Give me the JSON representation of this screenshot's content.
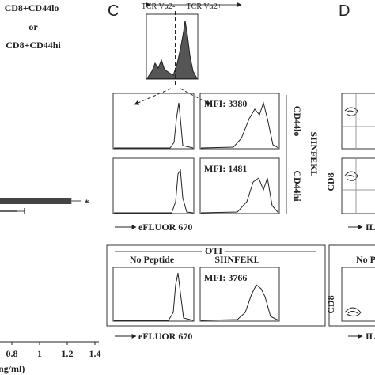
{
  "panel_b": {
    "title_lines": [
      "CD8+CD44lo",
      "or",
      "CD8+CD44hi"
    ],
    "bars": [
      {
        "value": 1.23,
        "error": 0.07,
        "label": "*"
      },
      {
        "value": 0.84,
        "error": 0.05
      }
    ],
    "xticks": [
      0.8,
      1.0,
      1.2,
      1.4
    ],
    "xlabel": "ng/ml)"
  },
  "panel_c": {
    "label": "C",
    "gate_labels": [
      "TCR Vα2-",
      "TCR Vα2+"
    ],
    "rows": [
      {
        "label": "CD44lo",
        "mfi": "MFI: 3380"
      },
      {
        "label": "CD44hi",
        "mfi": "MFI: 1481"
      }
    ],
    "group_label": "SIINFEKL",
    "x_axis": "eFLUOR 670",
    "oti": {
      "title": "OTI",
      "conditions": [
        "No Peptide",
        "SIINFEKL"
      ],
      "mfi": "MFI: 3766",
      "x_axis": "eFLUOR 670"
    }
  },
  "panel_d": {
    "label": "D",
    "y_axis": "CD8",
    "x_axis": "IL",
    "box_title": "No P"
  }
}
